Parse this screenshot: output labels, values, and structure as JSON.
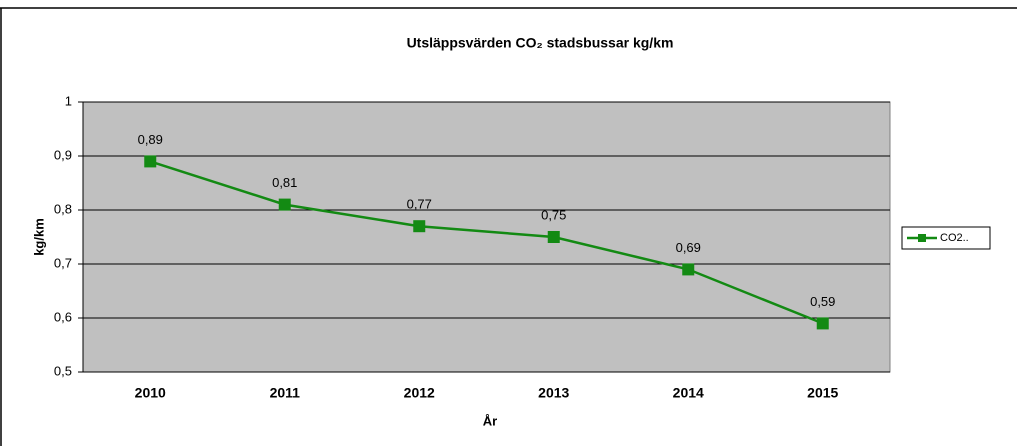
{
  "chart_data": {
    "type": "line",
    "title": "Utsläppsvärden CO₂ stadsbussar kg/km",
    "x_label": "År",
    "y_label": "kg/km",
    "categories": [
      "2010",
      "2011",
      "2012",
      "2013",
      "2014",
      "2015"
    ],
    "series": [
      {
        "name": "CO2..",
        "color": "#138a13",
        "values": [
          0.89,
          0.81,
          0.77,
          0.75,
          0.69,
          0.59
        ],
        "value_labels": [
          "0,89",
          "0,81",
          "0,77",
          "0,75",
          "0,69",
          "0,59"
        ]
      }
    ],
    "ylim": [
      0.5,
      1
    ],
    "yticks": [
      {
        "value": 0.5,
        "label": "0,5"
      },
      {
        "value": 0.6,
        "label": "0,6"
      },
      {
        "value": 0.7,
        "label": "0,7"
      },
      {
        "value": 0.8,
        "label": "0,8"
      },
      {
        "value": 0.9,
        "label": "0,9"
      },
      1
    ],
    "grid": true,
    "legend": "right"
  }
}
